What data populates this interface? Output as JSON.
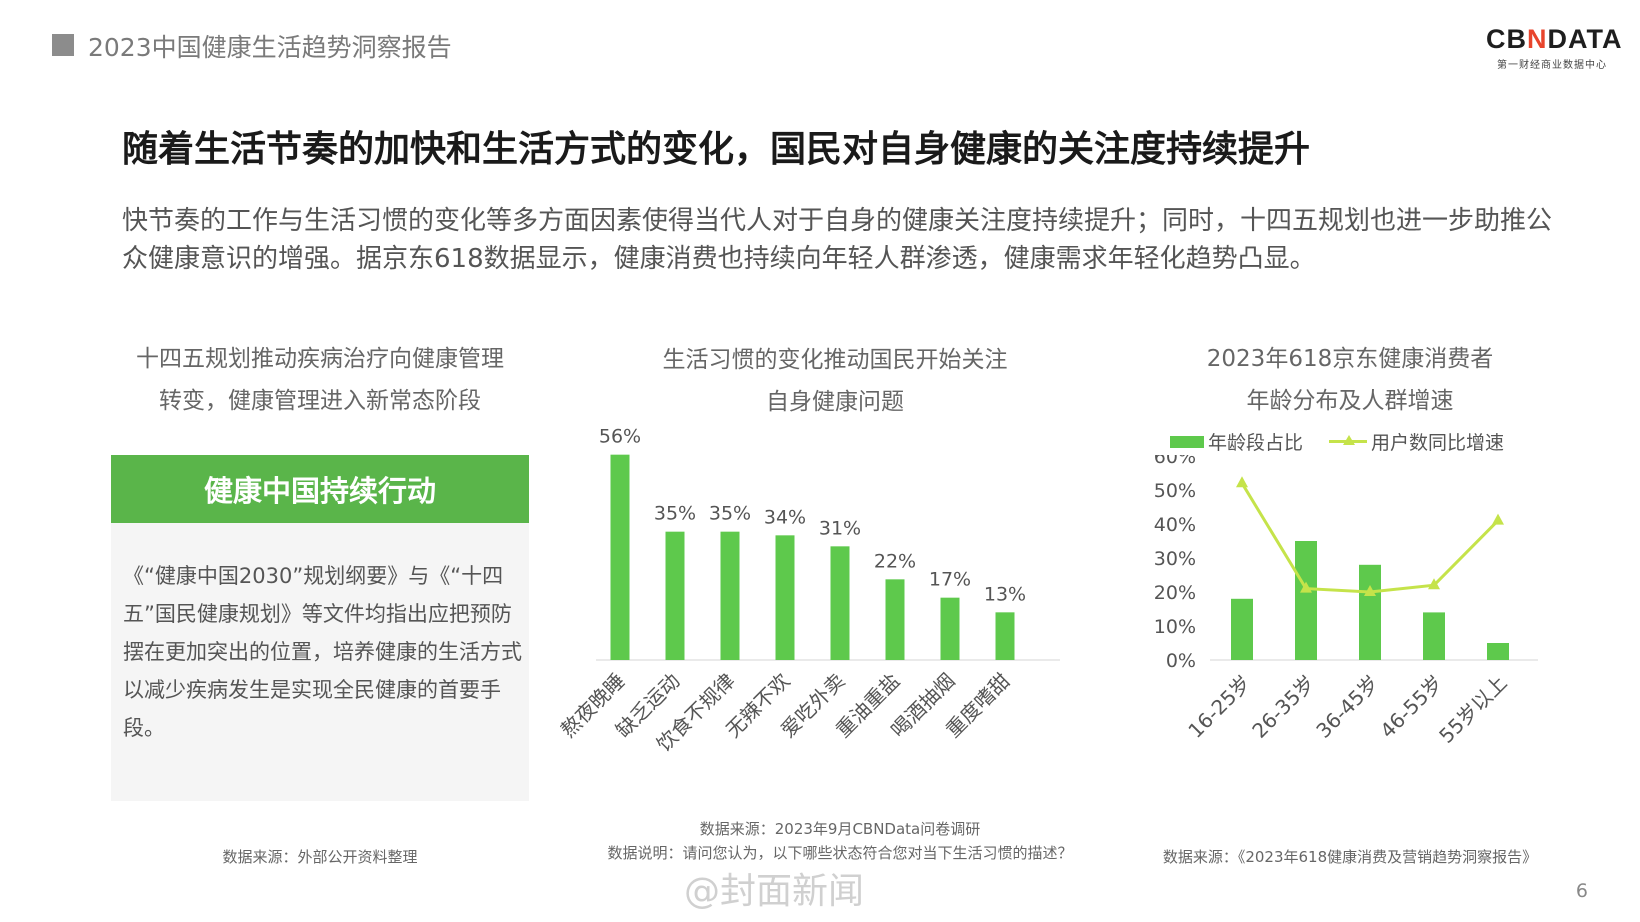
{
  "header": {
    "report_title": "2023中国健康生活趋势洞察报告",
    "logo_main_left": "CB",
    "logo_main_x": "N",
    "logo_main_right": "DATA",
    "logo_sub": "第一财经商业数据中心"
  },
  "headline": "随着生活节奏的加快和生活方式的变化，国民对自身健康的关注度持续提升",
  "intro": "快节奏的工作与生活习惯的变化等多方面因素使得当代人对于自身的健康关注度持续提升；同时，十四五规划也进一步助推公众健康意识的增强。据京东618数据显示，健康消费也持续向年轻人群渗透，健康需求年轻化趋势凸显。",
  "left_panel": {
    "title_line1": "十四五规划推动疾病治疗向健康管理",
    "title_line2": "转变，健康管理进入新常态阶段",
    "banner": "健康中国持续行动",
    "body": "《“健康中国2030”规划纲要》与《“十四五”国民健康规划》等文件均指出应把预防摆在更加突出的位置，培养健康的生活方式以减少疾病发生是实现全民健康的首要手段。",
    "source": "数据来源：外部公开资料整理"
  },
  "middle_panel": {
    "title_line1": "生活习惯的变化推动国民开始关注",
    "title_line2": "自身健康问题",
    "source_line1": "数据来源：2023年9月CBNData问卷调研",
    "source_line2": "数据说明：请问您认为，以下哪些状态符合您对当下生活习惯的描述？"
  },
  "right_panel": {
    "title_line1": "2023年618京东健康消费者",
    "title_line2": "年龄分布及人群增速",
    "legend_bar": "年龄段占比",
    "legend_line": "用户数同比增速",
    "source": "数据来源：《2023年618健康消费及营销趋势洞察报告》"
  },
  "page_number": "6",
  "watermark": "@封面新闻",
  "colors": {
    "bar": "#5ec94c",
    "line": "#c5e34a",
    "banner": "#5ab54a"
  },
  "chart_data": [
    {
      "type": "bar",
      "categories": [
        "熬夜晚睡",
        "缺乏运动",
        "饮食不规律",
        "无辣不欢",
        "爱吃外卖",
        "重油重盐",
        "喝酒抽烟",
        "重度嗜甜"
      ],
      "values": [
        56,
        35,
        35,
        34,
        31,
        22,
        17,
        13
      ],
      "value_labels": [
        "56%",
        "35%",
        "35%",
        "34%",
        "31%",
        "22%",
        "17%",
        "13%"
      ],
      "ylim": [
        0,
        60
      ],
      "grid": false
    },
    {
      "type": "bar+line",
      "categories": [
        "16-25岁",
        "26-35岁",
        "36-45岁",
        "46-55岁",
        "55岁以上"
      ],
      "series": [
        {
          "name": "年龄段占比",
          "type": "bar",
          "values": [
            18,
            35,
            28,
            14,
            5
          ]
        },
        {
          "name": "用户数同比增速",
          "type": "line",
          "values": [
            52,
            21,
            20,
            22,
            41
          ]
        }
      ],
      "yticks": [
        "0%",
        "10%",
        "20%",
        "30%",
        "40%",
        "50%",
        "60%"
      ],
      "ylim": [
        0,
        60
      ],
      "legend": "top",
      "grid": false
    }
  ]
}
